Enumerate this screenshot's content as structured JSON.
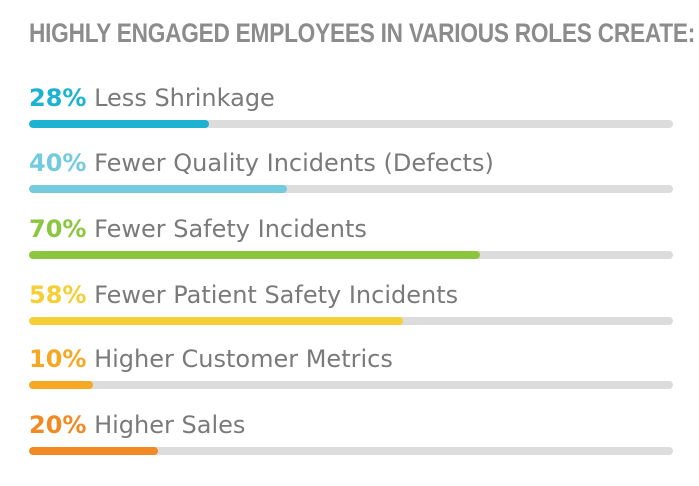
{
  "title": "HIGHLY ENGAGED EMPLOYEES IN VARIOUS ROLES CREATE:",
  "chart_data": {
    "type": "bar",
    "title": "HIGHLY ENGAGED EMPLOYEES IN VARIOUS ROLES CREATE:",
    "orientation": "horizontal",
    "categories": [
      "Less Shrinkage",
      "Fewer Quality Incidents (Defects)",
      "Fewer Safety Incidents",
      "Fewer Patient Safety Incidents",
      "Higher Customer Metrics",
      "Higher Sales"
    ],
    "values": [
      28,
      40,
      70,
      58,
      10,
      20
    ],
    "value_labels": [
      "28%",
      "40%",
      "70%",
      "58%",
      "10%",
      "20%"
    ],
    "xlim": [
      0,
      100
    ],
    "grid": false,
    "track_color": "#dcdcdc",
    "colors": [
      "#1bb3cf",
      "#74cbde",
      "#8cc63e",
      "#f6cf36",
      "#f7a822",
      "#f28a24"
    ]
  }
}
